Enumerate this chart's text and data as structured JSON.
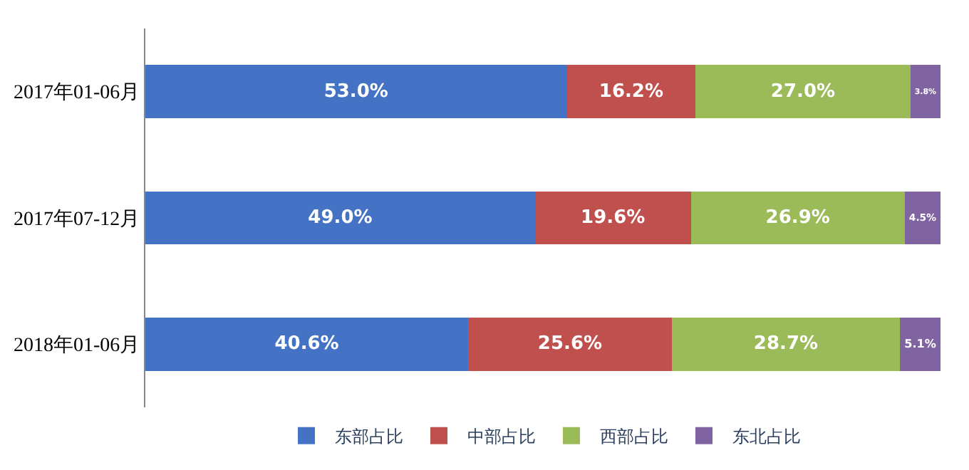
{
  "chart_data": {
    "type": "bar",
    "orientation": "horizontal",
    "stacked": true,
    "categories": [
      "2017年01-06月",
      "2017年07-12月",
      "2018年01-06月"
    ],
    "series": [
      {
        "name": "东部占比",
        "color": "#4472c4",
        "values": [
          53.0,
          49.0,
          40.6
        ],
        "value_labels": [
          "53.0%",
          "49.0%",
          "40.6%"
        ]
      },
      {
        "name": "中部占比",
        "color": "#c0504d",
        "values": [
          16.2,
          19.6,
          25.6
        ],
        "value_labels": [
          "16.2%",
          "19.6%",
          "25.6%"
        ]
      },
      {
        "name": "西部占比",
        "color": "#9bbb59",
        "values": [
          27.0,
          26.9,
          28.7
        ],
        "value_labels": [
          "27.0%",
          "26.9%",
          "28.7%"
        ]
      },
      {
        "name": "东北占比",
        "color": "#8064a2",
        "values": [
          3.8,
          4.5,
          5.1
        ],
        "value_labels": [
          "3.8%",
          "4.5%",
          "5.1%"
        ]
      }
    ],
    "xlim": [
      0,
      100
    ],
    "tick_labels": "y",
    "legend": "bottom"
  }
}
